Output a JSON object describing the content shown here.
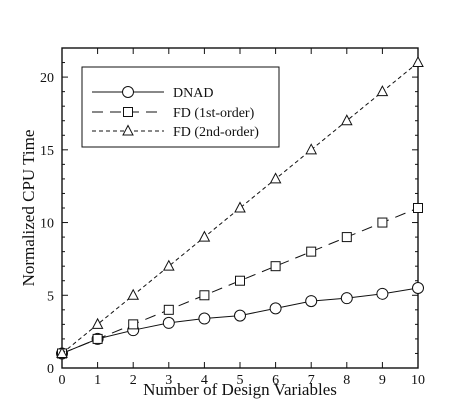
{
  "chart_data": {
    "type": "line",
    "xlabel": "Number of Design Variables",
    "ylabel": "Normalized CPU Time",
    "xlim": [
      0,
      10
    ],
    "ylim": [
      0,
      22
    ],
    "xticks": [
      0,
      1,
      2,
      3,
      4,
      5,
      6,
      7,
      8,
      9,
      10
    ],
    "yticks": [
      0,
      5,
      10,
      15,
      20
    ],
    "grid": false,
    "legend_position": "top-left",
    "x": [
      0,
      1,
      2,
      3,
      4,
      5,
      6,
      7,
      8,
      9,
      10
    ],
    "series": [
      {
        "name": "DNAD",
        "marker": "circle",
        "line_style": "solid",
        "values": [
          1.0,
          2.0,
          2.6,
          3.1,
          3.4,
          3.6,
          4.1,
          4.6,
          4.8,
          5.1,
          5.5
        ]
      },
      {
        "name": "FD (1st-order)",
        "marker": "square",
        "line_style": "long-dash",
        "values": [
          1,
          2,
          3,
          4,
          5,
          6,
          7,
          8,
          9,
          10,
          11
        ]
      },
      {
        "name": "FD (2nd-order)",
        "marker": "triangle",
        "line_style": "short-dash",
        "values": [
          1,
          3,
          5,
          7,
          9,
          11,
          13,
          15,
          17,
          19,
          21
        ]
      }
    ]
  }
}
